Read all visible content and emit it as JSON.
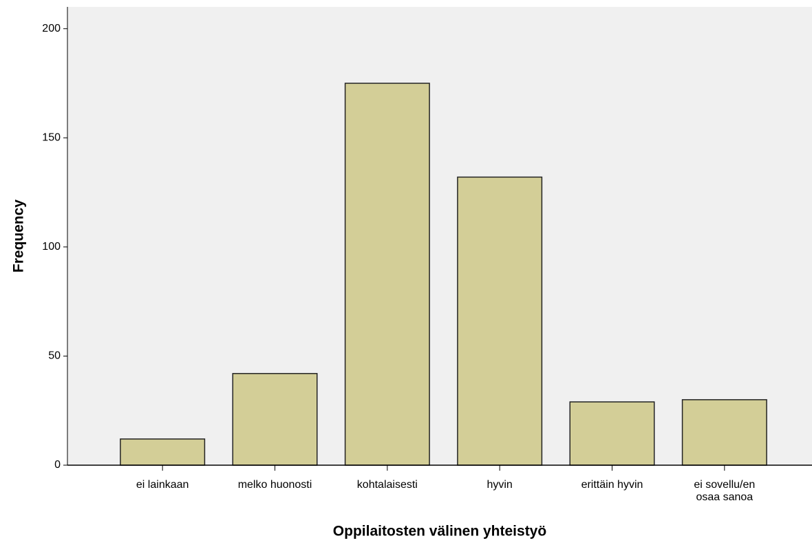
{
  "chart_data": {
    "type": "bar",
    "x_label": "Oppilaitosten välinen yhteistyö",
    "y_label": "Frequency",
    "categories": [
      "ei lainkaan",
      "melko huonosti",
      "kohtalaisesti",
      "hyvin",
      "erittäin hyvin",
      "ei sovellu/en osaa sanoa"
    ],
    "values": [
      12,
      42,
      175,
      132,
      29,
      30
    ],
    "color": "#d3ce97",
    "ylim": [
      0,
      210
    ],
    "yticks": [
      0,
      50,
      100,
      150,
      200
    ],
    "grid": false
  }
}
